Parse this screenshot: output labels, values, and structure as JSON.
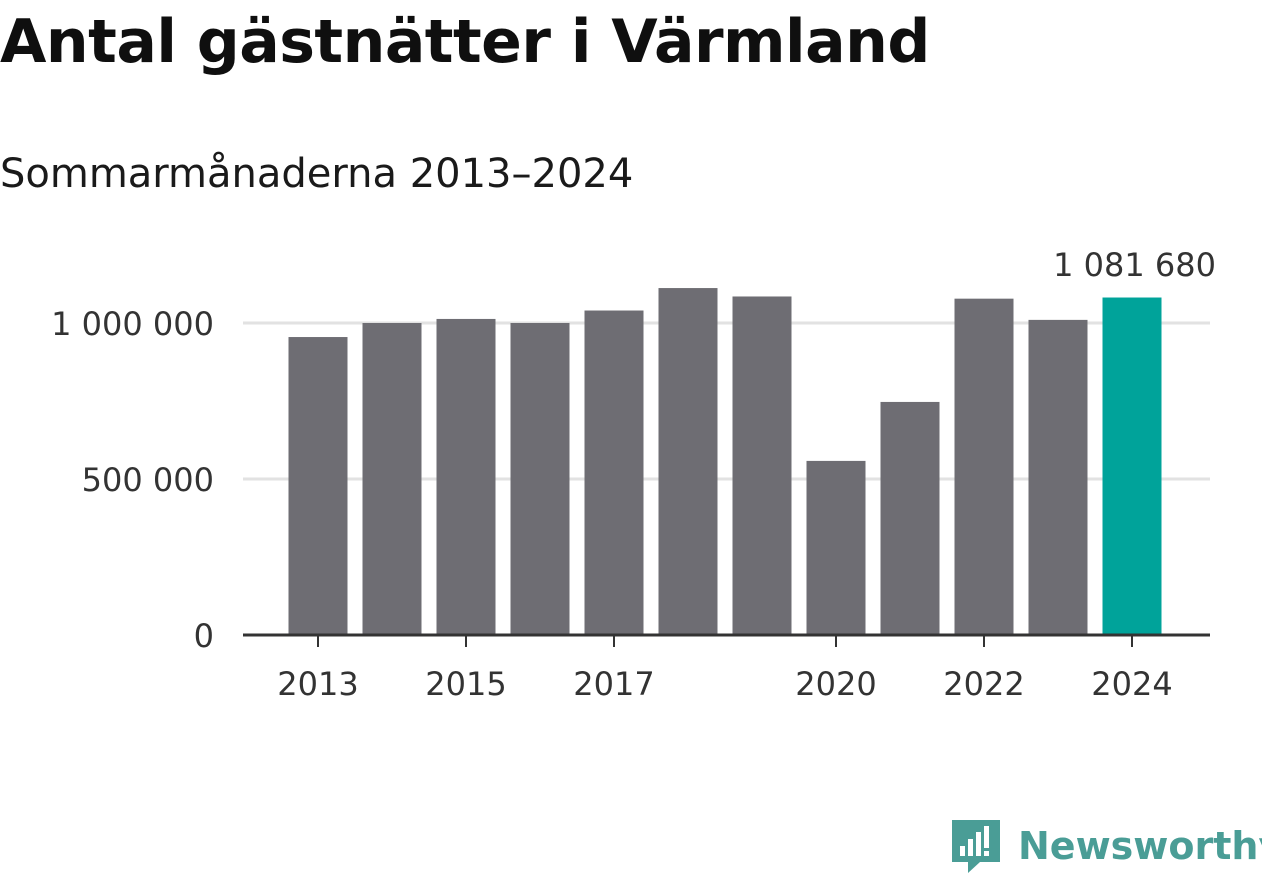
{
  "title": "Antal gästnätter i Värmland",
  "subtitle": "Sommarmånaderna 2013–2024",
  "colors": {
    "bar": "#6e6d73",
    "highlight": "#00a39a",
    "grid": "#e2e2e2",
    "axis": "#333333",
    "brand": "#4a9d96"
  },
  "brand": {
    "name": "Newsworthy",
    "icon": "newsworthy-logo-icon"
  },
  "chart_data": {
    "type": "bar",
    "categories": [
      "2013",
      "2014",
      "2015",
      "2016",
      "2017",
      "2018",
      "2019",
      "2020",
      "2021",
      "2022",
      "2023",
      "2024"
    ],
    "values": [
      955000,
      1000000,
      1013000,
      1000000,
      1040000,
      1112000,
      1085000,
      558000,
      747000,
      1078000,
      1010000,
      1081680
    ],
    "highlight_index": 11,
    "data_labels": [
      {
        "index": 11,
        "text": "1 081 680"
      }
    ],
    "x_tick_labels": [
      "2013",
      "2015",
      "2017",
      "2020",
      "2022",
      "2024"
    ],
    "y_ticks": [
      {
        "value": 0,
        "label": "0"
      },
      {
        "value": 500000,
        "label": "500 000"
      },
      {
        "value": 1000000,
        "label": "1 000 000"
      }
    ],
    "ylim": [
      0,
      1000000
    ],
    "grid": true,
    "legend": "none"
  }
}
